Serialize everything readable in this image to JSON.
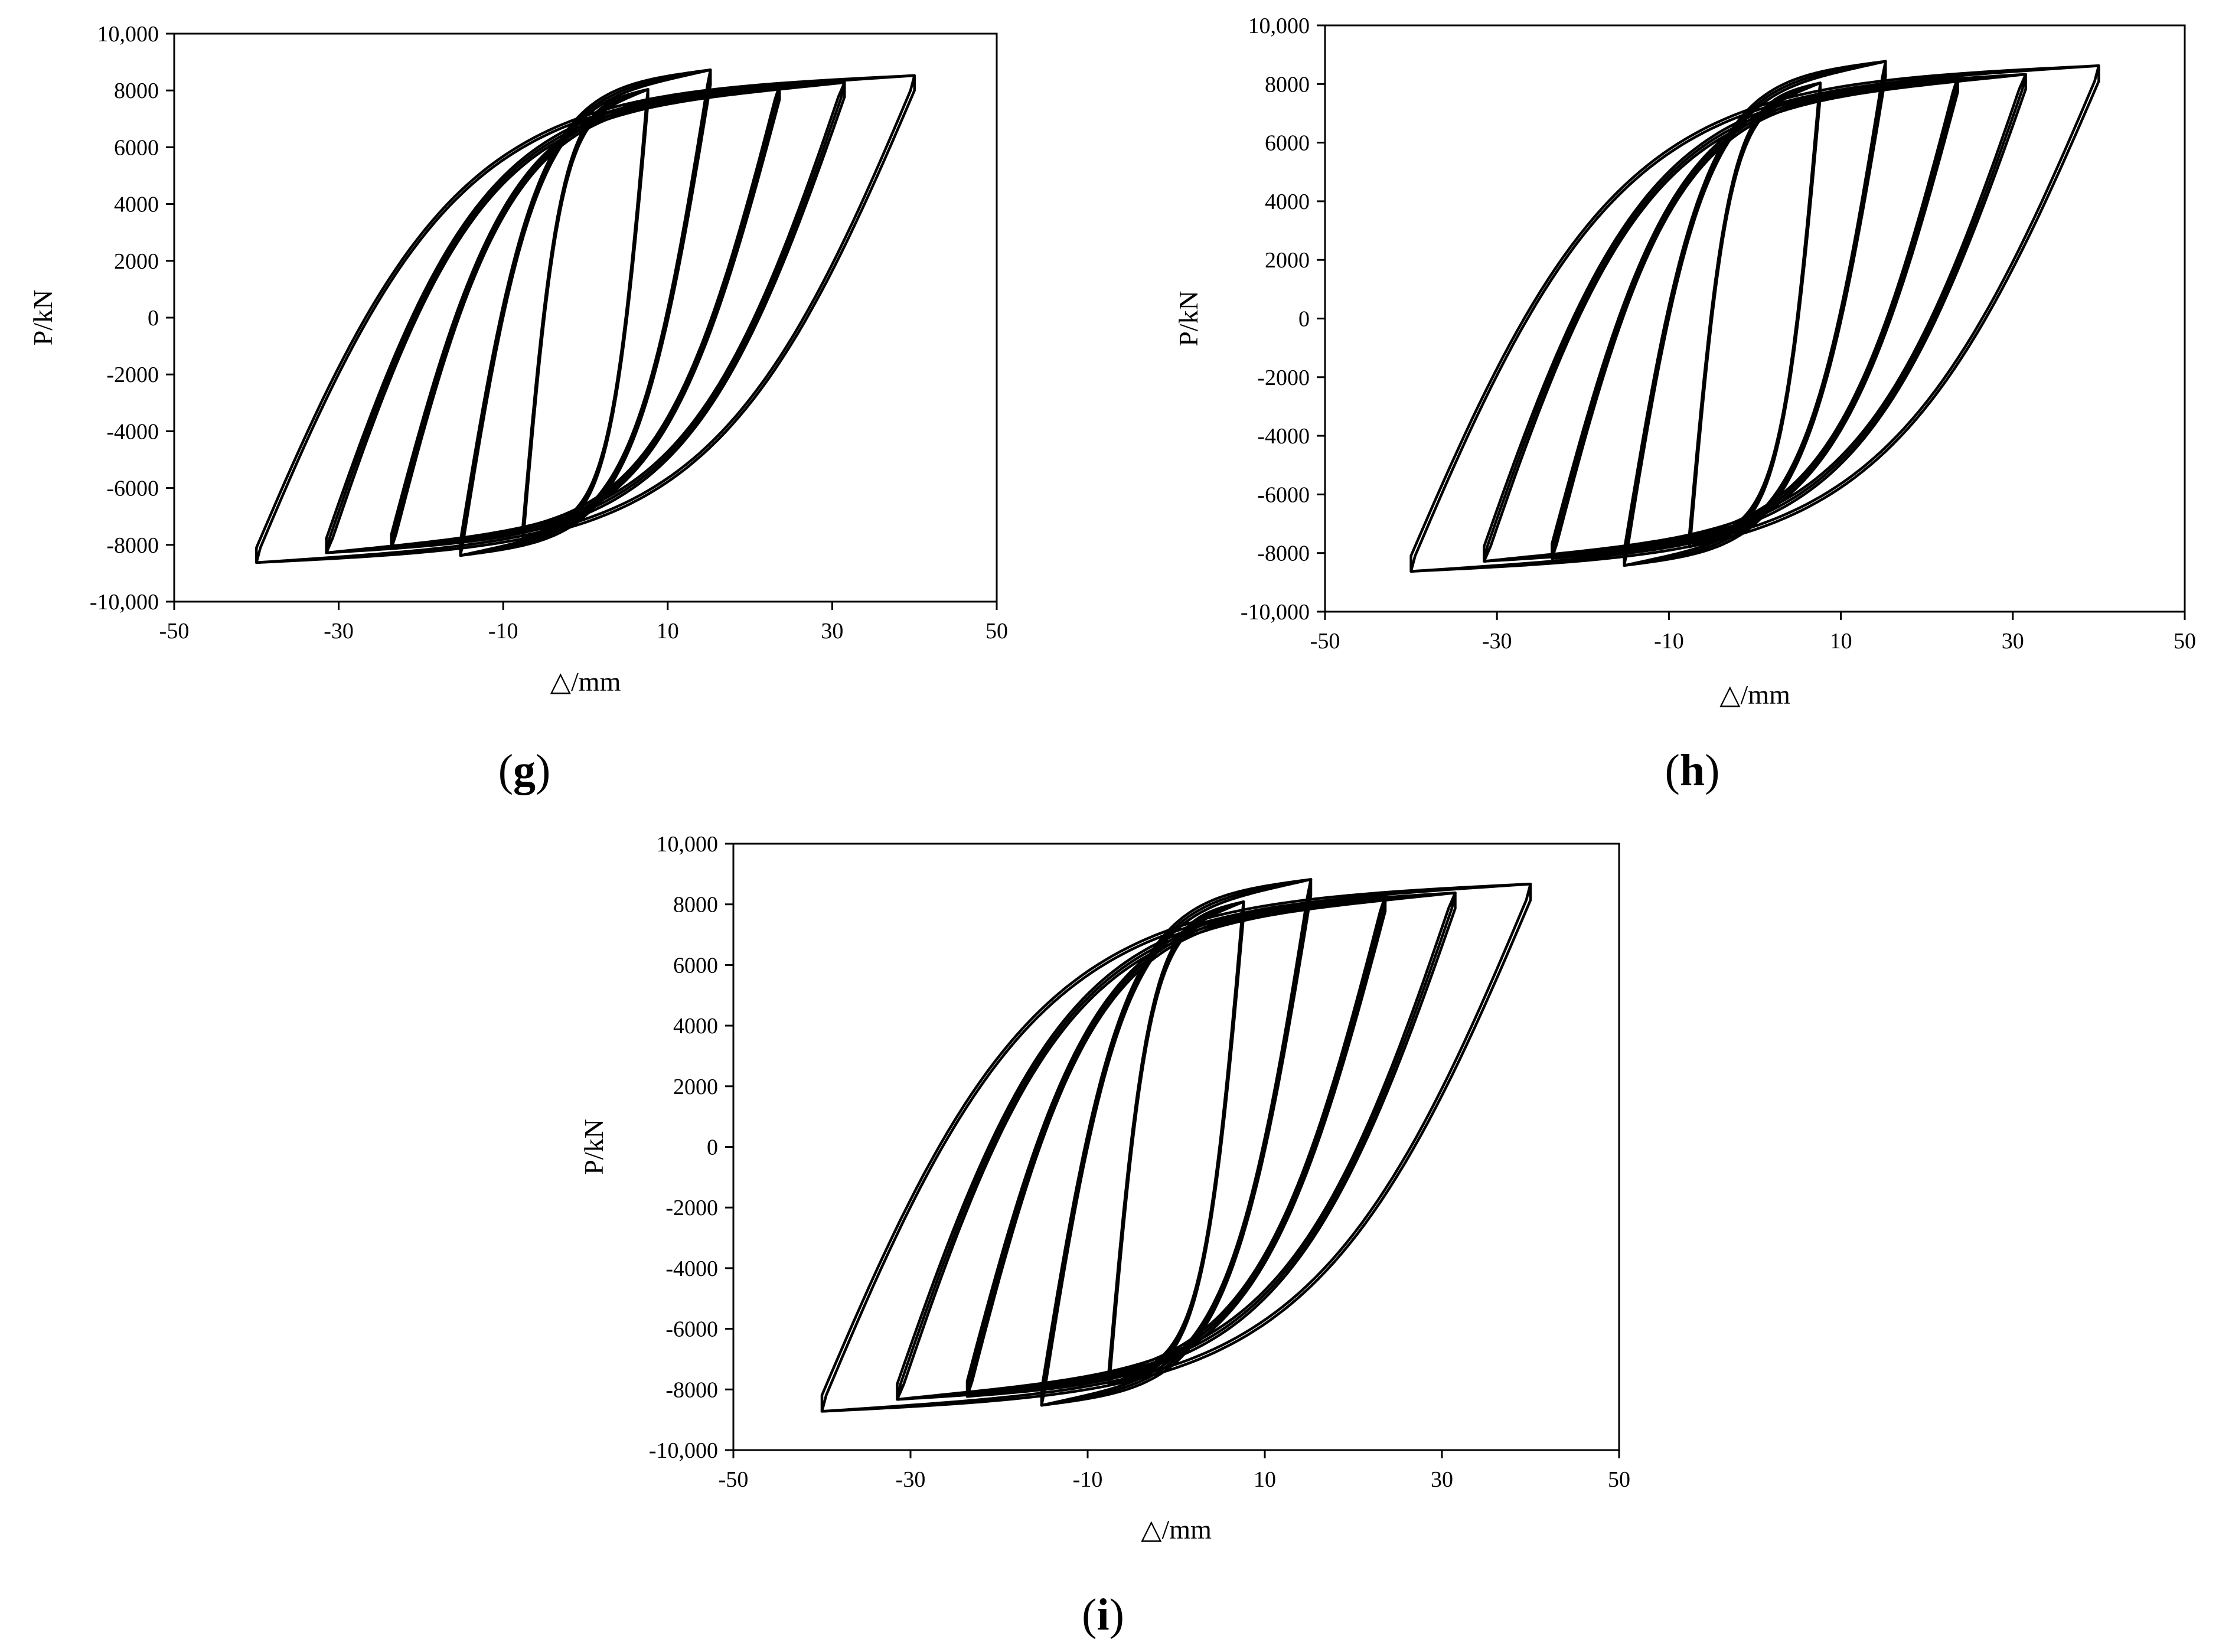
{
  "chart_data": [
    {
      "panel_label": "g",
      "type": "line",
      "xlabel": "△/mm",
      "ylabel": "P/kN",
      "xlim": [
        -50,
        50
      ],
      "ylim": [
        -10000,
        10000
      ],
      "x_ticks": [
        -50,
        -30,
        -10,
        10,
        30,
        50
      ],
      "x_tick_labels": [
        "-50",
        "-30",
        "-10",
        "10",
        "30",
        "50"
      ],
      "y_ticks": [
        -10000,
        -8000,
        -6000,
        -4000,
        -2000,
        0,
        2000,
        4000,
        6000,
        8000,
        10000
      ],
      "y_tick_labels": [
        "-10,000",
        "-8000",
        "-6000",
        "-4000",
        "-2000",
        "0",
        "2000",
        "4000",
        "6000",
        "8000",
        "10,000"
      ],
      "grid": false,
      "hysteresis_loops": [
        {
          "x_min": -7.6,
          "x_max": 7.6,
          "p_min": -7950,
          "p_max": 8200,
          "cycles": 3
        },
        {
          "x_min": -15.2,
          "x_max": 15.2,
          "p_min": -8550,
          "p_max": 8900,
          "cycles": 3
        },
        {
          "x_min": -23.6,
          "x_max": 23.6,
          "p_min": -8300,
          "p_max": 8350,
          "cycles": 3
        },
        {
          "x_min": -31.5,
          "x_max": 31.5,
          "p_min": -8450,
          "p_max": 8450,
          "cycles": 3
        },
        {
          "x_min": -40,
          "x_max": 40,
          "p_min": -8800,
          "p_max": 8700,
          "cycles": 2
        }
      ]
    },
    {
      "panel_label": "h",
      "type": "line",
      "xlabel": "△/mm",
      "ylabel": "P/kN",
      "xlim": [
        -50,
        50
      ],
      "ylim": [
        -10000,
        10000
      ],
      "x_ticks": [
        -50,
        -30,
        -10,
        10,
        30,
        50
      ],
      "x_tick_labels": [
        "-50",
        "-30",
        "-10",
        "10",
        "30",
        "50"
      ],
      "y_ticks": [
        -10000,
        -8000,
        -6000,
        -4000,
        -2000,
        0,
        2000,
        4000,
        6000,
        8000,
        10000
      ],
      "y_tick_labels": [
        "-10,000",
        "-8000",
        "-6000",
        "-4000",
        "-2000",
        "0",
        "2000",
        "4000",
        "6000",
        "8000",
        "10,000"
      ],
      "grid": false,
      "hysteresis_loops": [
        {
          "x_min": -7.6,
          "x_max": 7.6,
          "p_min": -7950,
          "p_max": 8200,
          "cycles": 3
        },
        {
          "x_min": -15.2,
          "x_max": 15.2,
          "p_min": -8600,
          "p_max": 8950,
          "cycles": 3
        },
        {
          "x_min": -23.6,
          "x_max": 23.6,
          "p_min": -8350,
          "p_max": 8400,
          "cycles": 3
        },
        {
          "x_min": -31.5,
          "x_max": 31.5,
          "p_min": -8450,
          "p_max": 8500,
          "cycles": 3
        },
        {
          "x_min": -40,
          "x_max": 40,
          "p_min": -8800,
          "p_max": 8800,
          "cycles": 2
        }
      ]
    },
    {
      "panel_label": "i",
      "type": "line",
      "xlabel": "△/mm",
      "ylabel": "P/kN",
      "xlim": [
        -50,
        50
      ],
      "ylim": [
        -10000,
        10000
      ],
      "x_ticks": [
        -50,
        -30,
        -10,
        10,
        30,
        50
      ],
      "x_tick_labels": [
        "-50",
        "-30",
        "-10",
        "10",
        "30",
        "50"
      ],
      "y_ticks": [
        -10000,
        -8000,
        -6000,
        -4000,
        -2000,
        0,
        2000,
        4000,
        6000,
        8000,
        10000
      ],
      "y_tick_labels": [
        "-10,000",
        "-8000",
        "-6000",
        "-4000",
        "-2000",
        "0",
        "2000",
        "4000",
        "6000",
        "8000",
        "10,000"
      ],
      "grid": false,
      "hysteresis_loops": [
        {
          "x_min": -7.6,
          "x_max": 7.6,
          "p_min": -8000,
          "p_max": 8250,
          "cycles": 3
        },
        {
          "x_min": -15.2,
          "x_max": 15.2,
          "p_min": -8700,
          "p_max": 9000,
          "cycles": 3
        },
        {
          "x_min": -23.6,
          "x_max": 23.6,
          "p_min": -8400,
          "p_max": 8450,
          "cycles": 3
        },
        {
          "x_min": -31.5,
          "x_max": 31.5,
          "p_min": -8500,
          "p_max": 8550,
          "cycles": 3
        },
        {
          "x_min": -40,
          "x_max": 40,
          "p_min": -8900,
          "p_max": 8850,
          "cycles": 2
        }
      ]
    }
  ]
}
